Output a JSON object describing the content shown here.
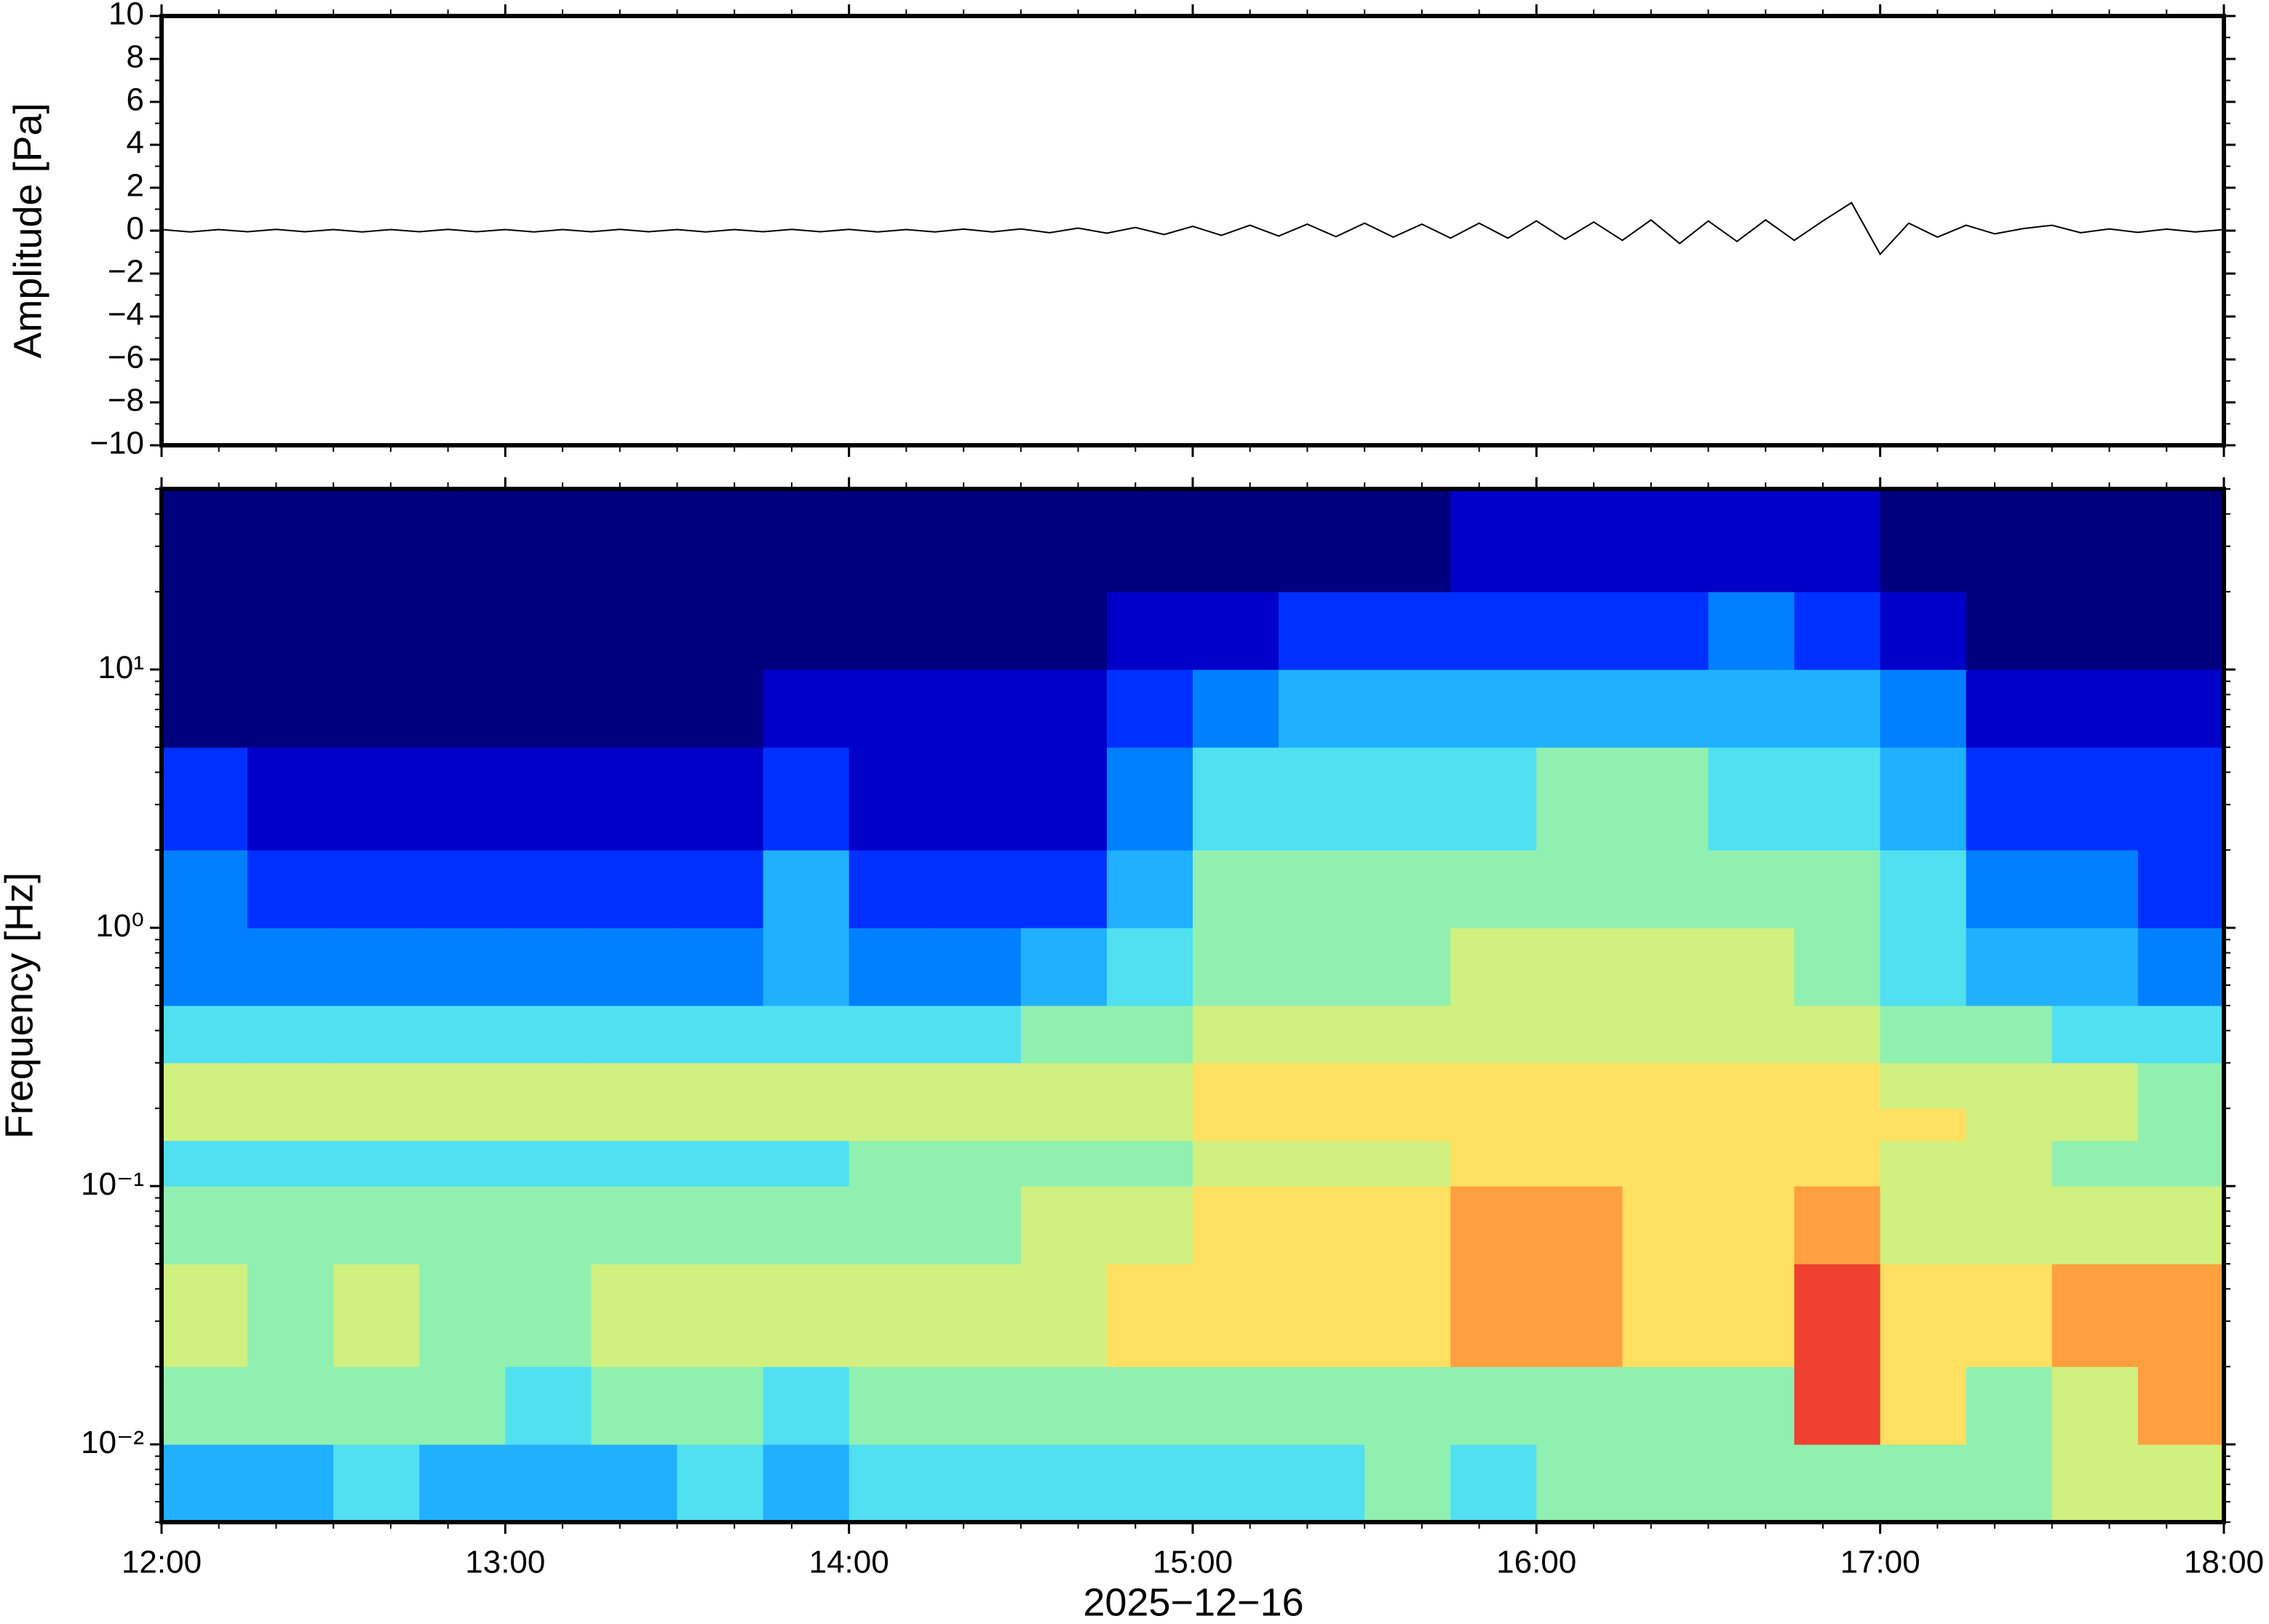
{
  "chart_data": [
    {
      "type": "line",
      "ylabel": "Amplitude [Pa]",
      "color": "#000000",
      "xlim": [
        "12:00",
        "18:00"
      ],
      "ylim": [
        -10,
        10
      ],
      "yticks": [
        {
          "value": -10,
          "label": "−10"
        },
        {
          "value": -8,
          "label": "−8"
        },
        {
          "value": -6,
          "label": "−6"
        },
        {
          "value": -4,
          "label": "−4"
        },
        {
          "value": -2,
          "label": "−2"
        },
        0,
        2,
        4,
        6,
        8,
        10
      ],
      "x": [
        "12:00",
        "12:05",
        "12:10",
        "12:15",
        "12:20",
        "12:25",
        "12:30",
        "12:35",
        "12:40",
        "12:45",
        "12:50",
        "12:55",
        "13:00",
        "13:05",
        "13:10",
        "13:15",
        "13:20",
        "13:25",
        "13:30",
        "13:35",
        "13:40",
        "13:45",
        "13:50",
        "13:55",
        "14:00",
        "14:05",
        "14:10",
        "14:15",
        "14:20",
        "14:25",
        "14:30",
        "14:35",
        "14:40",
        "14:45",
        "14:50",
        "14:55",
        "15:00",
        "15:05",
        "15:10",
        "15:15",
        "15:20",
        "15:25",
        "15:30",
        "15:35",
        "15:40",
        "15:45",
        "15:50",
        "15:55",
        "16:00",
        "16:05",
        "16:10",
        "16:15",
        "16:20",
        "16:25",
        "16:30",
        "16:35",
        "16:40",
        "16:45",
        "16:50",
        "16:55",
        "17:00",
        "17:05",
        "17:10",
        "17:15",
        "17:20",
        "17:25",
        "17:30",
        "17:35",
        "17:40",
        "17:45",
        "17:50",
        "17:55",
        "18:00"
      ],
      "values": [
        0.05,
        -0.06,
        0.05,
        -0.05,
        0.06,
        -0.05,
        0.05,
        -0.06,
        0.05,
        -0.05,
        0.06,
        -0.05,
        0.05,
        -0.06,
        0.05,
        -0.05,
        0.06,
        -0.05,
        0.05,
        -0.06,
        0.05,
        -0.05,
        0.06,
        -0.05,
        0.06,
        -0.06,
        0.05,
        -0.06,
        0.07,
        -0.06,
        0.08,
        -0.1,
        0.12,
        -0.12,
        0.15,
        -0.18,
        0.2,
        -0.22,
        0.25,
        -0.25,
        0.3,
        -0.28,
        0.35,
        -0.3,
        0.3,
        -0.35,
        0.35,
        -0.35,
        0.45,
        -0.4,
        0.4,
        -0.45,
        0.5,
        -0.6,
        0.45,
        -0.5,
        0.5,
        -0.45,
        0.45,
        1.3,
        -1.1,
        0.35,
        -0.3,
        0.25,
        -0.15,
        0.1,
        0.25,
        -0.1,
        0.08,
        -0.08,
        0.07,
        -0.06,
        0.05
      ]
    },
    {
      "type": "heatmap",
      "ylabel": "Frequency [Hz]",
      "xlabel": "2025−12−16",
      "log_y": true,
      "colors": [
        "#00007f",
        "#0000c8",
        "#0030ff",
        "#0080ff",
        "#20b0ff",
        "#50e0f0",
        "#90f0b0",
        "#d0f080",
        "#ffe060",
        "#ffa040",
        "#f04030"
      ],
      "xlim": [
        "12:00",
        "18:00"
      ],
      "xticks": [
        "12:00",
        "13:00",
        "14:00",
        "15:00",
        "16:00",
        "17:00",
        "18:00"
      ],
      "ylim": [
        0.005,
        50
      ],
      "yticks": [
        {
          "value": 0.01,
          "label": "10⁻²"
        },
        {
          "value": 0.1,
          "label": "10⁻¹"
        },
        {
          "value": 1,
          "label": "10⁰"
        },
        {
          "value": 10,
          "label": "10¹"
        }
      ],
      "x": [
        "12:00",
        "12:15",
        "12:30",
        "12:45",
        "13:00",
        "13:15",
        "13:30",
        "13:45",
        "14:00",
        "14:15",
        "14:30",
        "14:45",
        "15:00",
        "15:15",
        "15:30",
        "15:45",
        "16:00",
        "16:15",
        "16:30",
        "16:45",
        "17:00",
        "17:15",
        "17:30",
        "17:45"
      ],
      "y": [
        0.005,
        0.01,
        0.02,
        0.05,
        0.1,
        0.15,
        0.2,
        0.3,
        0.5,
        1,
        2,
        5,
        10,
        20,
        50
      ],
      "z": [
        [
          4,
          4,
          5,
          4,
          4,
          4,
          5,
          4,
          5,
          5,
          5,
          5,
          5,
          5,
          6,
          5,
          6,
          6,
          6,
          6,
          6,
          6,
          7,
          7
        ],
        [
          6,
          6,
          6,
          6,
          5,
          6,
          6,
          5,
          6,
          6,
          6,
          6,
          6,
          6,
          6,
          6,
          6,
          6,
          6,
          10,
          8,
          6,
          7,
          9
        ],
        [
          7,
          6,
          7,
          6,
          6,
          7,
          7,
          7,
          7,
          7,
          7,
          8,
          8,
          8,
          8,
          9,
          9,
          8,
          8,
          10,
          8,
          8,
          9,
          9
        ],
        [
          6,
          6,
          6,
          6,
          6,
          6,
          6,
          6,
          6,
          6,
          7,
          7,
          8,
          8,
          8,
          9,
          9,
          8,
          8,
          9,
          7,
          7,
          7,
          7
        ],
        [
          5,
          5,
          5,
          5,
          5,
          5,
          5,
          5,
          6,
          6,
          6,
          6,
          7,
          7,
          7,
          8,
          8,
          8,
          8,
          8,
          7,
          7,
          6,
          6
        ],
        [
          7,
          7,
          7,
          7,
          7,
          7,
          7,
          7,
          7,
          7,
          7,
          7,
          8,
          8,
          8,
          8,
          8,
          8,
          8,
          8,
          8,
          7,
          7,
          6
        ],
        [
          7,
          7,
          7,
          7,
          7,
          7,
          7,
          7,
          7,
          7,
          7,
          7,
          8,
          8,
          8,
          8,
          8,
          8,
          8,
          8,
          7,
          7,
          7,
          6
        ],
        [
          5,
          5,
          5,
          5,
          5,
          5,
          5,
          5,
          5,
          5,
          6,
          6,
          7,
          7,
          7,
          7,
          7,
          7,
          7,
          7,
          6,
          6,
          5,
          5
        ],
        [
          3,
          3,
          3,
          3,
          3,
          3,
          3,
          4,
          3,
          3,
          4,
          5,
          6,
          6,
          6,
          7,
          7,
          7,
          7,
          6,
          5,
          4,
          4,
          3
        ],
        [
          3,
          2,
          2,
          2,
          2,
          2,
          2,
          4,
          2,
          2,
          2,
          4,
          6,
          6,
          6,
          6,
          6,
          6,
          6,
          6,
          5,
          3,
          3,
          2
        ],
        [
          2,
          1,
          1,
          1,
          1,
          1,
          1,
          2,
          1,
          1,
          1,
          3,
          5,
          5,
          5,
          5,
          6,
          6,
          5,
          5,
          4,
          2,
          2,
          2
        ],
        [
          0,
          0,
          0,
          0,
          0,
          0,
          0,
          1,
          1,
          1,
          1,
          2,
          3,
          4,
          4,
          4,
          4,
          4,
          4,
          4,
          3,
          1,
          1,
          1
        ],
        [
          0,
          0,
          0,
          0,
          0,
          0,
          0,
          0,
          0,
          0,
          0,
          1,
          1,
          2,
          2,
          2,
          2,
          2,
          3,
          2,
          1,
          0,
          0,
          0
        ],
        [
          0,
          0,
          0,
          0,
          0,
          0,
          0,
          0,
          0,
          0,
          0,
          0,
          0,
          0,
          0,
          1,
          1,
          1,
          1,
          1,
          0,
          0,
          0,
          0
        ]
      ]
    }
  ]
}
